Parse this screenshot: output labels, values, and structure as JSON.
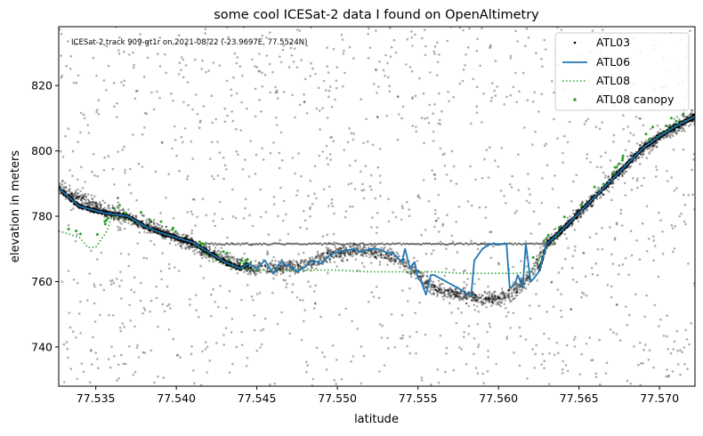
{
  "chart_data": {
    "type": "scatter",
    "title": "some cool ICESat-2 data I found on OpenAltimetry",
    "annotation": "ICESat-2 track 909-gt1r on 2021-08-22 (-23.9697E, 77.5524N)",
    "xlabel": "latitude",
    "ylabel": "elevation in meters",
    "xlim": [
      77.5327,
      77.5722
    ],
    "ylim": [
      728,
      838
    ],
    "xticks": [
      "77.535",
      "77.540",
      "77.545",
      "77.550",
      "77.555",
      "77.560",
      "77.565",
      "77.570"
    ],
    "yticks": [
      "740",
      "760",
      "780",
      "800",
      "820"
    ],
    "grid": false,
    "legend_position": "top-right",
    "colors": {
      "atl03": "#000000",
      "atl06": "#1f77b4",
      "atl08": "#2ca02c",
      "canopy": "#2ca02c"
    },
    "series": [
      {
        "name": "ATL03",
        "kind": "scatter",
        "note_points": "dense photon cloud along ground plus sparse background noise"
      },
      {
        "name": "ATL06",
        "kind": "line",
        "x": [
          77.5327,
          77.534,
          77.5355,
          77.537,
          77.538,
          77.539,
          77.54,
          77.541,
          77.542,
          77.543,
          77.544,
          77.5445,
          77.545,
          77.5455,
          77.546,
          77.5465,
          77.5468,
          77.547,
          77.5475,
          77.548,
          77.5485,
          77.549,
          77.5495,
          77.55,
          77.5505,
          77.551,
          77.5515,
          77.552,
          77.5525,
          77.553,
          77.5535,
          77.554,
          77.5542,
          77.5545,
          77.5548,
          77.555,
          77.5552,
          77.5555,
          77.5558,
          77.556,
          77.5575,
          77.5583,
          77.5585,
          77.559,
          77.5595,
          77.56,
          77.5605,
          77.5607,
          77.561,
          77.5612,
          77.5615,
          77.5617,
          77.562,
          77.5622,
          77.5625,
          77.563,
          77.564,
          77.565,
          77.566,
          77.567,
          77.568,
          77.569,
          77.57,
          77.571,
          77.5722
        ],
        "y": [
          788.5,
          783,
          781,
          780,
          777,
          775,
          773.5,
          772,
          769,
          766,
          764,
          765.5,
          764,
          766.5,
          762.5,
          766,
          765,
          765,
          763,
          764.5,
          766.5,
          765.5,
          768,
          769,
          769.5,
          770,
          769,
          770,
          770,
          769,
          768.5,
          766,
          770,
          764,
          766,
          761,
          760,
          756,
          762,
          762,
          758,
          755.5,
          766.5,
          770,
          771.5,
          771.5,
          771.5,
          758,
          759,
          762,
          758,
          771.5,
          760,
          761,
          763,
          771.5,
          776,
          781,
          786,
          791,
          796,
          801,
          804.5,
          807.5,
          810.5
        ]
      },
      {
        "name": "ATL08",
        "kind": "dotted-line",
        "x": [
          77.5327,
          77.534,
          77.5345,
          77.535,
          77.5357,
          77.536,
          77.537,
          77.538,
          77.539,
          77.54,
          77.541,
          77.542,
          77.543,
          77.544,
          77.545,
          77.546,
          77.547,
          77.548,
          77.55,
          77.552,
          77.554,
          77.556,
          77.558,
          77.56,
          77.561,
          77.562,
          77.563,
          77.564,
          77.565,
          77.566,
          77.567,
          77.568,
          77.569,
          77.57,
          77.571,
          77.5722
        ],
        "y": [
          775.5,
          773.5,
          770.5,
          770.5,
          775.5,
          780,
          779,
          777,
          775,
          773.5,
          772,
          767.5,
          765,
          764,
          763.5,
          763.5,
          763.5,
          763.5,
          763.5,
          763,
          763,
          763,
          762.5,
          762.5,
          762.5,
          763,
          770,
          776,
          781,
          786,
          791,
          796,
          801,
          805,
          808,
          810.5
        ]
      },
      {
        "name": "ATL08 canopy",
        "kind": "scatter"
      }
    ]
  }
}
